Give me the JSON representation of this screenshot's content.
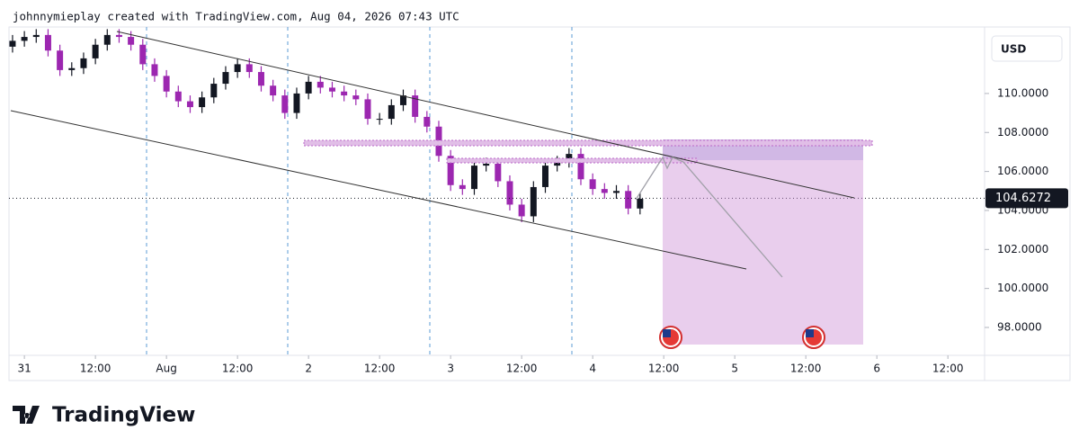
{
  "chart_data": {
    "type": "candlestick",
    "title": "johnnymieplay created with TradingView.com, Aug 04, 2026 07:43 UTC",
    "currency": "USD",
    "brand": "TradingView",
    "up_color": "#131722",
    "down_color": "#9c27b0",
    "x": [
      -2,
      0,
      2,
      4,
      6,
      8,
      10,
      12,
      14,
      16,
      18,
      20,
      22,
      24,
      26,
      28,
      30,
      32,
      34,
      36,
      38,
      40,
      42,
      44,
      46,
      48,
      50,
      52,
      54,
      56,
      58,
      60,
      62,
      64,
      66,
      68,
      70,
      72,
      74,
      76,
      78,
      80,
      82,
      84,
      86,
      88,
      90,
      92,
      94,
      96,
      98,
      100,
      102,
      104
    ],
    "open": [
      112.4,
      112.7,
      112.9,
      113.0,
      112.2,
      111.2,
      111.3,
      111.8,
      112.5,
      113.0,
      112.9,
      112.5,
      111.5,
      110.9,
      110.1,
      109.6,
      109.3,
      109.8,
      110.5,
      111.1,
      111.5,
      111.1,
      110.4,
      109.9,
      109.0,
      110.0,
      110.6,
      110.3,
      110.1,
      109.9,
      109.7,
      108.7,
      108.7,
      109.4,
      109.9,
      108.8,
      108.3,
      106.8,
      105.3,
      105.1,
      106.3,
      106.4,
      105.5,
      104.3,
      103.7,
      105.2,
      106.3,
      106.5,
      106.9,
      105.6,
      105.1,
      104.9,
      105.0,
      104.1
    ],
    "high": [
      113.0,
      113.2,
      113.3,
      113.3,
      112.5,
      111.6,
      112.1,
      112.8,
      113.3,
      113.3,
      113.2,
      112.8,
      111.8,
      111.2,
      110.4,
      109.9,
      110.1,
      110.8,
      111.4,
      111.8,
      111.8,
      111.4,
      110.7,
      110.2,
      110.3,
      110.9,
      110.9,
      110.6,
      110.4,
      110.2,
      110.0,
      109.0,
      109.7,
      110.2,
      110.2,
      109.1,
      108.6,
      107.1,
      105.6,
      106.6,
      106.7,
      106.7,
      105.8,
      104.6,
      105.5,
      106.6,
      106.8,
      107.2,
      107.2,
      105.9,
      105.4,
      105.3,
      105.3,
      104.9
    ],
    "low": [
      112.1,
      112.4,
      112.6,
      111.9,
      110.9,
      110.9,
      111.0,
      111.5,
      112.2,
      112.6,
      112.2,
      111.2,
      110.6,
      109.8,
      109.3,
      109.0,
      109.0,
      109.5,
      110.2,
      110.8,
      110.8,
      110.1,
      109.6,
      108.7,
      108.7,
      109.7,
      110.0,
      109.8,
      109.6,
      109.4,
      108.4,
      108.4,
      108.4,
      109.1,
      108.5,
      108.0,
      106.5,
      105.0,
      104.8,
      104.8,
      106.0,
      105.2,
      104.0,
      103.4,
      103.4,
      104.9,
      106.0,
      106.2,
      105.3,
      104.8,
      104.6,
      104.6,
      103.8,
      103.8
    ],
    "close": [
      112.7,
      112.9,
      113.0,
      112.2,
      111.2,
      111.3,
      111.8,
      112.5,
      113.0,
      112.9,
      112.5,
      111.5,
      110.9,
      110.1,
      109.6,
      109.3,
      109.8,
      110.5,
      111.1,
      111.5,
      111.1,
      110.4,
      109.9,
      109.0,
      110.0,
      110.6,
      110.3,
      110.1,
      109.9,
      109.7,
      108.7,
      108.7,
      109.4,
      109.9,
      108.8,
      108.3,
      106.8,
      105.3,
      105.1,
      106.3,
      106.4,
      105.5,
      104.3,
      103.7,
      105.2,
      106.3,
      106.5,
      106.9,
      105.6,
      105.1,
      104.9,
      105.0,
      104.1,
      104.6
    ],
    "last_price": 104.6272,
    "xlim": [
      -2.6,
      162.2
    ],
    "ylim": [
      96.57,
      113.41
    ],
    "yticks": [
      {
        "value": 98,
        "label": "98.0000"
      },
      {
        "value": 100,
        "label": "100.0000"
      },
      {
        "value": 102,
        "label": "102.0000"
      },
      {
        "value": 104,
        "label": "104.0000"
      },
      {
        "value": 106,
        "label": "106.0000"
      },
      {
        "value": 108,
        "label": "108.0000"
      },
      {
        "value": 110,
        "label": "110.0000"
      }
    ],
    "xticks": [
      {
        "value": 0,
        "label": "31"
      },
      {
        "value": 12,
        "label": "12:00"
      },
      {
        "value": 24,
        "label": "Aug"
      },
      {
        "value": 36,
        "label": "12:00"
      },
      {
        "value": 48,
        "label": "2"
      },
      {
        "value": 60,
        "label": "12:00"
      },
      {
        "value": 72,
        "label": "3"
      },
      {
        "value": 84,
        "label": "12:00"
      },
      {
        "value": 96,
        "label": "4"
      },
      {
        "value": 108,
        "label": "12:00"
      },
      {
        "value": 120,
        "label": "5"
      },
      {
        "value": 132,
        "label": "12:00"
      },
      {
        "value": 144,
        "label": "6"
      },
      {
        "value": 156,
        "label": "12:00"
      }
    ]
  }
}
